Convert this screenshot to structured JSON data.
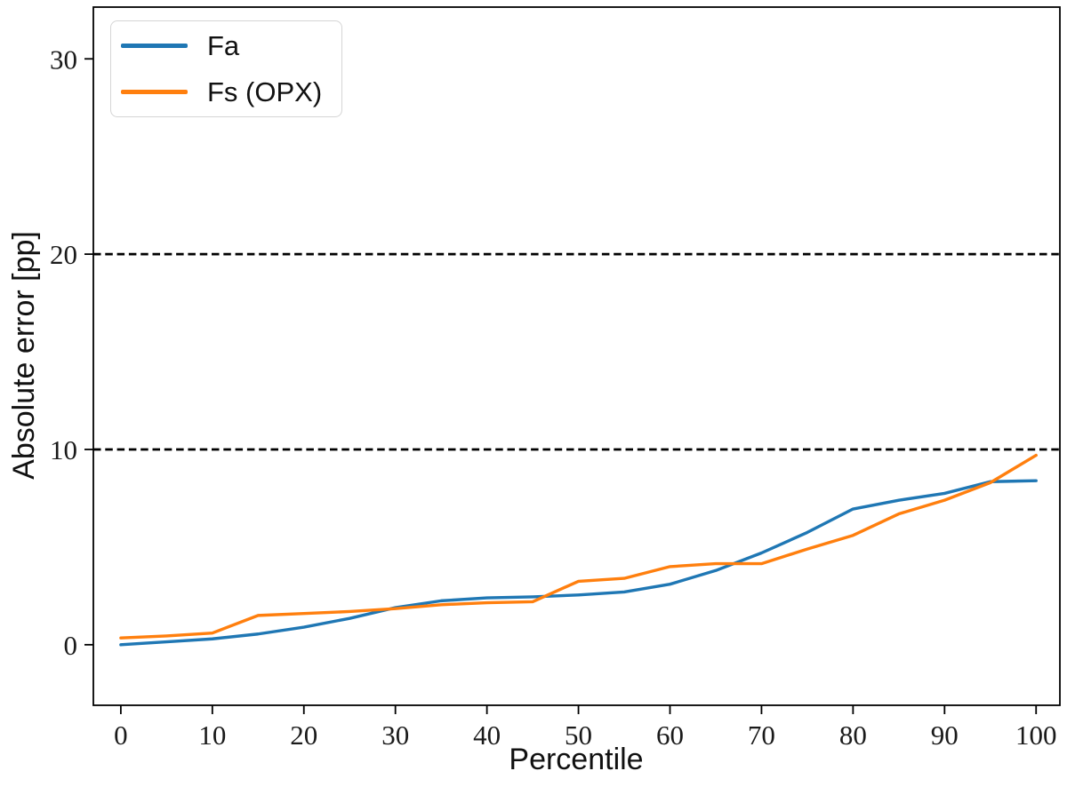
{
  "chart_data": {
    "type": "line",
    "title": "",
    "xlabel": "Percentile",
    "ylabel": "Absolute error [pp]",
    "x": [
      0,
      5,
      10,
      15,
      20,
      25,
      30,
      35,
      40,
      45,
      50,
      55,
      60,
      65,
      70,
      75,
      80,
      85,
      90,
      95,
      100
    ],
    "series": [
      {
        "name": "Fa",
        "color": "#1f77b4",
        "values": [
          0.0,
          0.15,
          0.3,
          0.55,
          0.9,
          1.35,
          1.9,
          2.25,
          2.4,
          2.45,
          2.55,
          2.7,
          3.1,
          3.8,
          4.7,
          5.75,
          6.95,
          7.4,
          7.75,
          8.35,
          8.4
        ]
      },
      {
        "name": "Fs (OPX)",
        "color": "#ff7f0e",
        "values": [
          0.35,
          0.45,
          0.6,
          1.5,
          1.6,
          1.7,
          1.85,
          2.05,
          2.15,
          2.2,
          3.25,
          3.4,
          4.0,
          4.15,
          4.15,
          4.9,
          5.6,
          6.7,
          7.4,
          8.3,
          9.7
        ]
      }
    ],
    "x_ticks": [
      0,
      10,
      20,
      30,
      40,
      50,
      60,
      70,
      80,
      90,
      100
    ],
    "y_ticks": [
      0,
      10,
      20,
      30
    ],
    "xlim": [
      -3.0,
      102.6
    ],
    "ylim": [
      -3.1,
      32.65
    ],
    "guide_lines_y": [
      10,
      20
    ],
    "guide_line_style": "black dashed",
    "legend_position": "upper-left",
    "grid": false,
    "frame_color": "#000000"
  }
}
